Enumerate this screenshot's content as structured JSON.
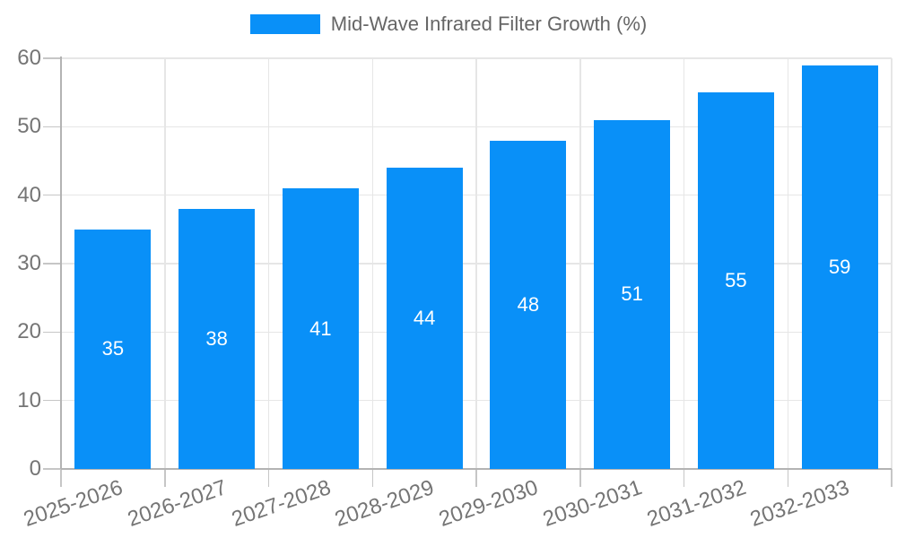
{
  "legend": {
    "label": "Mid-Wave Infrared Filter Growth (%)"
  },
  "chart_data": {
    "type": "bar",
    "title": "Mid-Wave Infrared Filter Growth (%)",
    "series_name": "Mid-Wave Infrared Filter Growth (%)",
    "categories": [
      "2025-2026",
      "2026-2027",
      "2027-2028",
      "2028-2029",
      "2029-2030",
      "2030-2031",
      "2031-2032",
      "2032-2033"
    ],
    "values": [
      35,
      38,
      41,
      44,
      48,
      51,
      55,
      59
    ],
    "ylabel": "",
    "xlabel": "",
    "ylim": [
      0,
      60
    ],
    "yticks": [
      0,
      10,
      20,
      30,
      40,
      50,
      60
    ],
    "grid": true,
    "legend_position": "top",
    "bar_color": "#0990f8",
    "bar_label_color": "#ffffff",
    "grid_color": "#e6e6e6",
    "axis_color": "#b3b3b3",
    "tick_mark_color": "#c6c6c6",
    "tick_text_color": "#757575",
    "legend_text_color": "#666666",
    "background_color": "#ffffff"
  }
}
